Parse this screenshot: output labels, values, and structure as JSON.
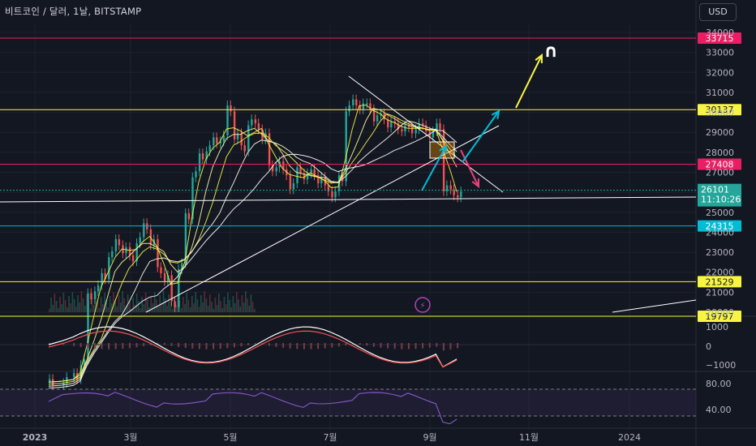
{
  "header": {
    "title": "비트코인 / 달러, 1날, BITSTAMP",
    "currency_button": "USD"
  },
  "colors": {
    "bg": "#131722",
    "up": "#26a69a",
    "down": "#ef5350",
    "yellow": "#f7f542",
    "pink": "#e91e63",
    "cyan": "#00bcd4",
    "white": "#ffffff",
    "rsi": "#7e57c2",
    "macd_red": "#ef5350"
  },
  "chart_data": {
    "type": "line",
    "price_axis_ticks": [
      34000,
      33000,
      32000,
      31000,
      30000,
      29000,
      28000,
      27000,
      26000,
      25000,
      24000,
      23000,
      22000,
      21000,
      20000
    ],
    "time_axis_labels": [
      "2023",
      "3월",
      "5월",
      "7월",
      "9월",
      "11월",
      "2024"
    ],
    "level_lines": [
      {
        "value": 33715,
        "label": "33715",
        "color": "#e91e63"
      },
      {
        "value": 30137,
        "label": "30137",
        "color": "#f7f542"
      },
      {
        "value": 27408,
        "label": "27408",
        "color": "#e91e63"
      },
      {
        "value": 24315,
        "label": "24315",
        "color": "#00bcd4"
      },
      {
        "value": 21529,
        "label": "21529",
        "color": "#f7f542"
      },
      {
        "value": 19797,
        "label": "19797",
        "color": "#f7f542"
      }
    ],
    "current_price": {
      "value": 26101,
      "label": "26101",
      "countdown": "11:10:26"
    },
    "price_path": [
      [
        0,
        16500
      ],
      [
        8,
        16600
      ],
      [
        14,
        16800
      ],
      [
        18,
        17500
      ],
      [
        22,
        20800
      ],
      [
        26,
        21200
      ],
      [
        30,
        21800
      ],
      [
        34,
        22900
      ],
      [
        38,
        23500
      ],
      [
        42,
        23100
      ],
      [
        46,
        22700
      ],
      [
        50,
        23600
      ],
      [
        54,
        24300
      ],
      [
        58,
        23500
      ],
      [
        62,
        22100
      ],
      [
        66,
        21700
      ],
      [
        70,
        20400
      ],
      [
        74,
        22300
      ],
      [
        78,
        24800
      ],
      [
        82,
        26900
      ],
      [
        86,
        27800
      ],
      [
        90,
        28200
      ],
      [
        94,
        28600
      ],
      [
        98,
        28700
      ],
      [
        102,
        30200
      ],
      [
        106,
        28800
      ],
      [
        110,
        28200
      ],
      [
        114,
        29500
      ],
      [
        118,
        29300
      ],
      [
        122,
        28800
      ],
      [
        126,
        27200
      ],
      [
        130,
        27400
      ],
      [
        134,
        27000
      ],
      [
        138,
        26300
      ],
      [
        142,
        27100
      ],
      [
        146,
        26800
      ],
      [
        150,
        27000
      ],
      [
        154,
        26600
      ],
      [
        158,
        26200
      ],
      [
        162,
        25900
      ],
      [
        166,
        26700
      ],
      [
        170,
        30200
      ],
      [
        174,
        30500
      ],
      [
        178,
        30300
      ],
      [
        182,
        30300
      ],
      [
        186,
        29700
      ],
      [
        190,
        29800
      ],
      [
        194,
        29400
      ],
      [
        198,
        29300
      ],
      [
        202,
        29200
      ],
      [
        206,
        29100
      ],
      [
        210,
        29300
      ],
      [
        214,
        29200
      ],
      [
        218,
        28900
      ],
      [
        222,
        29300
      ],
      [
        226,
        26200
      ],
      [
        230,
        26000
      ],
      [
        234,
        25900
      ]
    ],
    "macd_axis_ticks": [
      "1000",
      "0",
      "−1000"
    ],
    "rsi_axis_ticks": [
      "80.00",
      "40.00"
    ],
    "annotations": {
      "symbol": "∩"
    }
  }
}
